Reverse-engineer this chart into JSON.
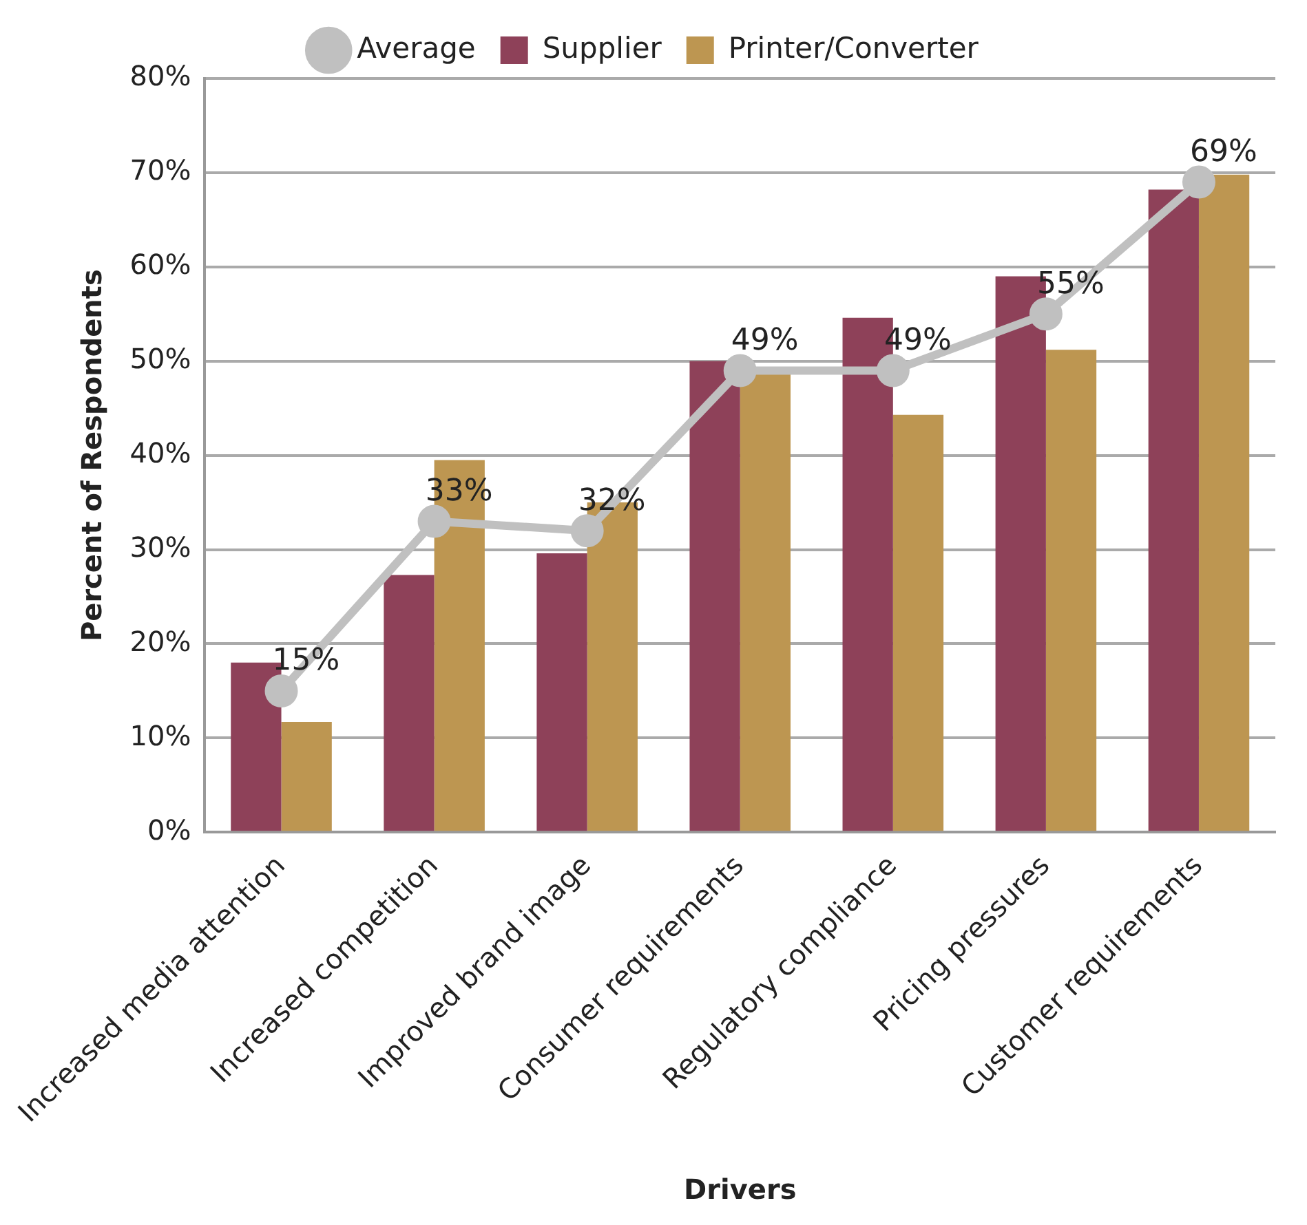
{
  "chart_data": {
    "type": "bar",
    "xlabel": "Drivers",
    "ylabel": "Percent of Respondents",
    "categories": [
      "Increased media attention",
      "Increased competition",
      "Improved brand image",
      "Consumer requirements",
      "Regulatory compliance",
      "Pricing pressures",
      "Customer requirements"
    ],
    "series": [
      {
        "name": "Supplier",
        "color": "#8e4159",
        "values": [
          18,
          27.3,
          29.6,
          50,
          54.6,
          59,
          68.2
        ]
      },
      {
        "name": "Printer/Converter",
        "color": "#bd9651",
        "values": [
          11.7,
          39.5,
          35,
          49,
          44.3,
          51.2,
          69.8
        ]
      },
      {
        "name": "Average",
        "type": "line",
        "color": "#c0c0c0",
        "marker": "circle",
        "values": [
          15,
          33,
          32,
          49,
          49,
          55,
          69
        ],
        "value_labels": [
          "15%",
          "33%",
          "32%",
          "49%",
          "49%",
          "55%",
          "69%"
        ]
      }
    ],
    "ylim": [
      0,
      80
    ],
    "yticks": [
      {
        "value": 0,
        "label": "0%"
      },
      {
        "value": 10,
        "label": "10%"
      },
      {
        "value": 20,
        "label": "20%"
      },
      {
        "value": 30,
        "label": "30%"
      },
      {
        "value": 40,
        "label": "40%"
      },
      {
        "value": 50,
        "label": "50%"
      },
      {
        "value": 60,
        "label": "60%"
      },
      {
        "value": 70,
        "label": "70%"
      },
      {
        "value": 80,
        "label": "80%"
      }
    ],
    "grid": "y",
    "legend": "top"
  }
}
